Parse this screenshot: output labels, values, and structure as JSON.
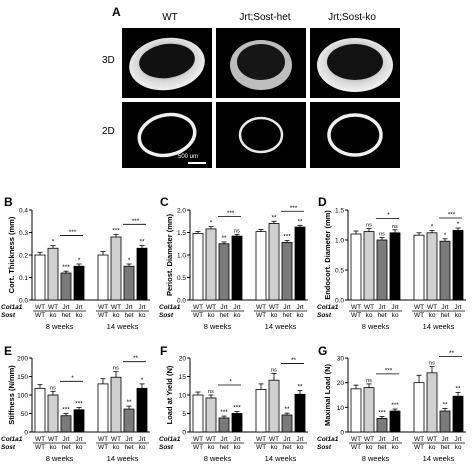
{
  "figure": {
    "panel_a": {
      "label": "A",
      "columns": [
        "WT",
        "Jrt;Sost-het",
        "Jrt;Sost-ko"
      ],
      "rows": [
        "3D",
        "2D"
      ],
      "scale_bar": "500 um"
    },
    "genotype_axis": {
      "row1_name": "Col1a1",
      "row2_name": "Sost",
      "row1": [
        "WT",
        "WT",
        "Jrt",
        "Jrt"
      ],
      "row2": [
        "WT",
        "ko",
        "het",
        "ko"
      ],
      "groups": [
        "8 weeks",
        "14 weeks"
      ]
    }
  },
  "chart_data": [
    {
      "panel": "B",
      "type": "bar",
      "ylabel": "Cort. Thickness (mm)",
      "ylim": [
        0,
        0.4
      ],
      "yticks": [
        "0.0",
        "0.1",
        "0.2",
        "0.3",
        "0.4"
      ],
      "groups": [
        "8 weeks",
        "14 weeks"
      ],
      "values": [
        [
          0.2,
          0.23,
          0.12,
          0.15
        ],
        [
          0.2,
          0.28,
          0.15,
          0.23
        ]
      ],
      "errors": [
        [
          0.012,
          0.012,
          0.008,
          0.01
        ],
        [
          0.015,
          0.012,
          0.01,
          0.012
        ]
      ],
      "stars": [
        [
          "",
          "*",
          "***",
          "*"
        ],
        [
          "",
          "***",
          "*",
          "**"
        ]
      ],
      "comparisons": [
        [
          "***"
        ],
        [
          "***"
        ]
      ]
    },
    {
      "panel": "C",
      "type": "bar",
      "ylabel": "Periost. Diameter (mm)",
      "ylim": [
        0,
        2.0
      ],
      "yticks": [
        "0.0",
        "0.5",
        "1.0",
        "1.5",
        "2.0"
      ],
      "groups": [
        "8 weeks",
        "14 weeks"
      ],
      "values": [
        [
          1.48,
          1.58,
          1.25,
          1.42
        ],
        [
          1.52,
          1.7,
          1.28,
          1.62
        ]
      ],
      "errors": [
        [
          0.04,
          0.05,
          0.04,
          0.04
        ],
        [
          0.05,
          0.05,
          0.04,
          0.04
        ]
      ],
      "stars": [
        [
          "",
          "*",
          "**",
          "ns"
        ],
        [
          "",
          "**",
          "***",
          "**"
        ]
      ],
      "comparisons": [
        [
          "***"
        ],
        [
          "***"
        ]
      ]
    },
    {
      "panel": "D",
      "type": "bar",
      "ylabel": "Endocort. Diameter (mm)",
      "ylim": [
        0,
        1.5
      ],
      "yticks": [
        "0.0",
        "0.5",
        "1.0",
        "1.5"
      ],
      "groups": [
        "8 weeks",
        "14 weeks"
      ],
      "values": [
        [
          1.1,
          1.14,
          1.0,
          1.12
        ],
        [
          1.08,
          1.12,
          0.98,
          1.16
        ]
      ],
      "errors": [
        [
          0.05,
          0.05,
          0.04,
          0.05
        ],
        [
          0.04,
          0.04,
          0.04,
          0.04
        ]
      ],
      "stars": [
        [
          "",
          "ns",
          "ns",
          "ns"
        ],
        [
          "",
          "*",
          "*",
          "*"
        ]
      ],
      "comparisons": [
        [
          "*"
        ],
        [
          "***"
        ]
      ]
    },
    {
      "panel": "E",
      "type": "bar",
      "ylabel": "Stiffness (N/mm)",
      "ylim": [
        0,
        200
      ],
      "yticks": [
        "0",
        "50",
        "100",
        "150",
        "200"
      ],
      "groups": [
        "8 weeks",
        "14 weeks"
      ],
      "values": [
        [
          118,
          100,
          44,
          60
        ],
        [
          130,
          148,
          62,
          118
        ]
      ],
      "errors": [
        [
          10,
          10,
          6,
          6
        ],
        [
          14,
          15,
          8,
          12
        ]
      ],
      "stars": [
        [
          "",
          "ns",
          "***",
          "***"
        ],
        [
          "",
          "ns",
          "**",
          "*"
        ]
      ],
      "comparisons": [
        [
          "*"
        ],
        [
          "**"
        ]
      ]
    },
    {
      "panel": "F",
      "type": "bar",
      "ylabel": "Load at Yield (N)",
      "ylim": [
        0,
        20
      ],
      "yticks": [
        "0",
        "5",
        "10",
        "15",
        "20"
      ],
      "groups": [
        "8 weeks",
        "14 weeks"
      ],
      "values": [
        [
          10.0,
          9.2,
          3.8,
          5.0
        ],
        [
          11.5,
          14.0,
          4.6,
          10.2
        ]
      ],
      "errors": [
        [
          0.8,
          0.8,
          0.5,
          0.5
        ],
        [
          1.5,
          1.8,
          0.5,
          1.0
        ]
      ],
      "stars": [
        [
          "",
          "ns",
          "***",
          "***"
        ],
        [
          "",
          "ns",
          "**",
          "**"
        ]
      ],
      "comparisons": [
        [
          "*"
        ],
        [
          "**"
        ]
      ]
    },
    {
      "panel": "G",
      "type": "bar",
      "ylabel": "Maximal Load (N)",
      "ylim": [
        0,
        30
      ],
      "yticks": [
        "0",
        "10",
        "20",
        "30"
      ],
      "groups": [
        "8 weeks",
        "14 weeks"
      ],
      "values": [
        [
          17.5,
          18.0,
          5.5,
          8.5
        ],
        [
          20.0,
          24.0,
          8.5,
          14.5
        ]
      ],
      "errors": [
        [
          1.5,
          1.5,
          0.8,
          0.8
        ],
        [
          3.0,
          2.5,
          1.0,
          1.5
        ]
      ],
      "stars": [
        [
          "",
          "ns",
          "***",
          "***"
        ],
        [
          "",
          "ns",
          "**",
          "**"
        ]
      ],
      "comparisons": [
        [
          "***"
        ],
        [
          "**"
        ]
      ]
    }
  ]
}
